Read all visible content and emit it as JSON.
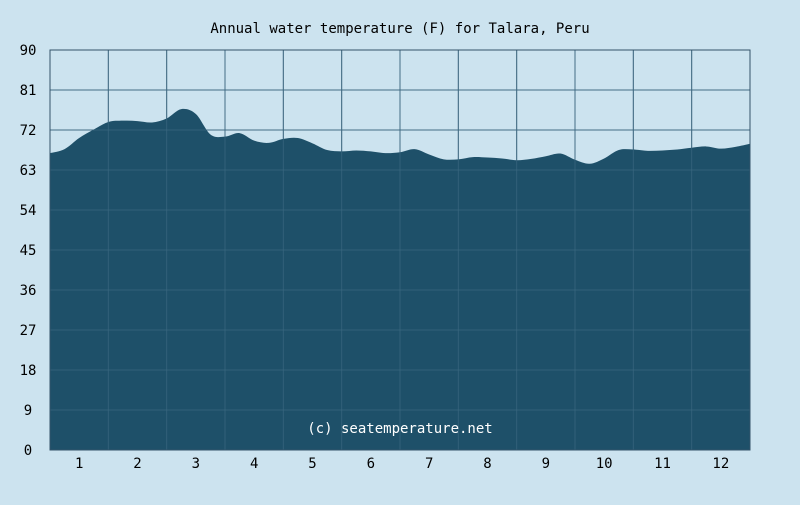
{
  "chart_data": {
    "type": "area",
    "title": "Annual water temperature (F) for Talara, Peru",
    "watermark": "(c) seatemperature.net",
    "ylim": [
      0,
      90
    ],
    "yticks": [
      0,
      9,
      18,
      27,
      36,
      45,
      54,
      63,
      72,
      81,
      90
    ],
    "xlim": [
      0.5,
      12.5
    ],
    "xticks": [
      1,
      2,
      3,
      4,
      5,
      6,
      7,
      8,
      9,
      10,
      11,
      12
    ],
    "grid": true,
    "colors": {
      "background": "#cce3ef",
      "area": "#1e5069",
      "grid": "#4d6f85",
      "axis": "#33536a"
    },
    "series": [
      {
        "x": [
          0.5,
          0.75,
          1.0,
          1.25,
          1.5,
          1.75,
          2.0,
          2.25,
          2.5,
          2.75,
          3.0,
          3.25,
          3.5,
          3.75,
          4.0,
          4.25,
          4.5,
          4.75,
          5.0,
          5.25,
          5.5,
          5.75,
          6.0,
          6.25,
          6.5,
          6.75,
          7.0,
          7.25,
          7.5,
          7.75,
          8.0,
          8.25,
          8.5,
          8.75,
          9.0,
          9.25,
          9.5,
          9.75,
          10.0,
          10.25,
          10.5,
          10.75,
          11.0,
          11.25,
          11.5,
          11.75,
          12.0,
          12.25,
          12.5
        ],
        "y": [
          66.8,
          67.7,
          70.2,
          72.1,
          73.8,
          74.1,
          74.0,
          73.7,
          74.6,
          76.7,
          75.6,
          71.0,
          70.5,
          71.3,
          69.6,
          69.1,
          70.0,
          70.2,
          69.0,
          67.5,
          67.2,
          67.4,
          67.2,
          66.8,
          67.0,
          67.7,
          66.5,
          65.4,
          65.4,
          65.9,
          65.8,
          65.6,
          65.2,
          65.5,
          66.1,
          66.7,
          65.3,
          64.4,
          65.6,
          67.5,
          67.6,
          67.3,
          67.4,
          67.6,
          68.0,
          68.3,
          67.8,
          68.2,
          68.9
        ]
      }
    ]
  }
}
